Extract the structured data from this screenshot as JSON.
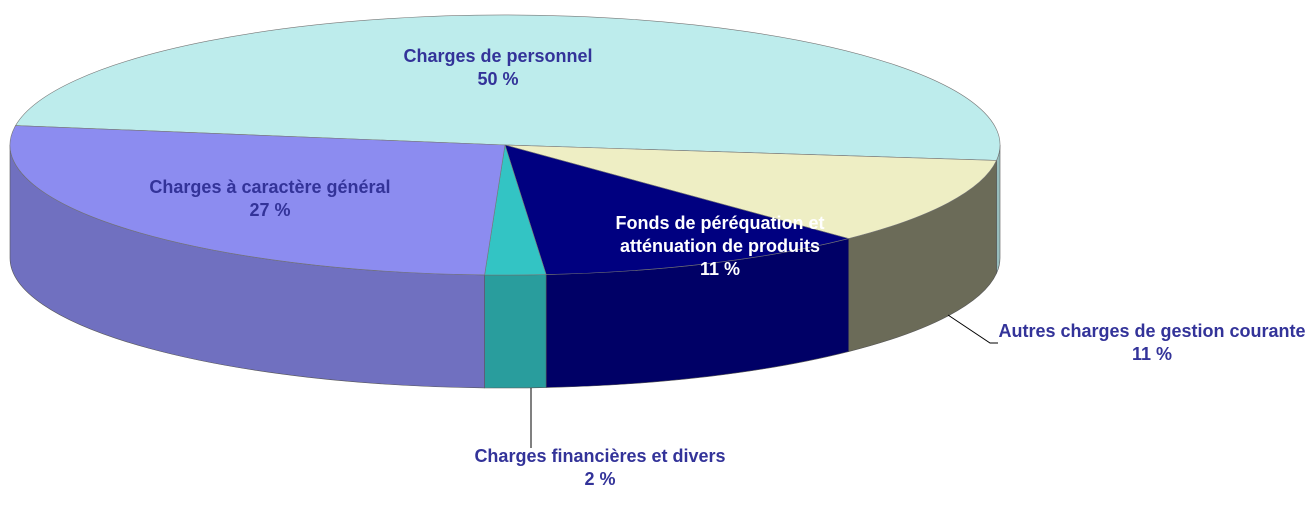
{
  "chart_data": {
    "type": "pie",
    "categories": [
      "Charges de personnel",
      "Autres charges de gestion courante",
      "Fonds de péréquation et atténuation de produits",
      "Charges financières et divers",
      "Charges à caractère général"
    ],
    "values": [
      50,
      11,
      11,
      2,
      27
    ],
    "value_labels": [
      "50 %",
      "11 %",
      "11 %",
      "2 %",
      "27 %"
    ],
    "colors": [
      "#bdecec",
      "#eeeec4",
      "#000080",
      "#33c4c4",
      "#8c8cf0"
    ]
  }
}
